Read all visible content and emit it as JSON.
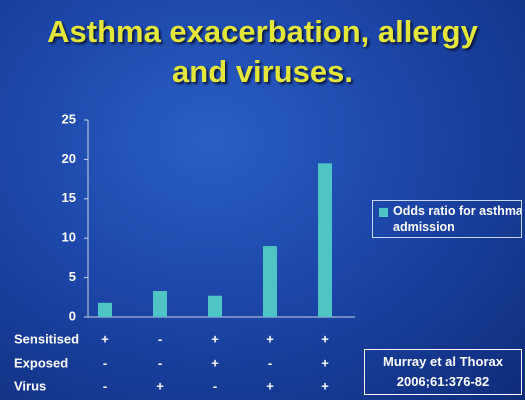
{
  "chart_data": {
    "type": "bar",
    "title": "Asthma exacerbation, allergy and viruses.",
    "series": [
      {
        "name": "Odds ratio for asthma admission",
        "color": "#4fc4c4",
        "values": [
          1.8,
          3.3,
          2.7,
          9.0,
          19.5
        ]
      }
    ],
    "ylim": [
      0,
      25
    ],
    "yticks": [
      0,
      5,
      10,
      15,
      20,
      25
    ],
    "grid": false
  },
  "table": {
    "rows": [
      {
        "label": "Sensitised",
        "cells": [
          "+",
          "-",
          "+",
          "+",
          "+"
        ]
      },
      {
        "label": "Exposed",
        "cells": [
          "-",
          "-",
          "+",
          "-",
          "+"
        ]
      },
      {
        "label": "Virus",
        "cells": [
          "-",
          "+",
          "-",
          "+",
          "+"
        ]
      }
    ]
  },
  "citation": "Murray et al Thorax 2006;61:376-82"
}
